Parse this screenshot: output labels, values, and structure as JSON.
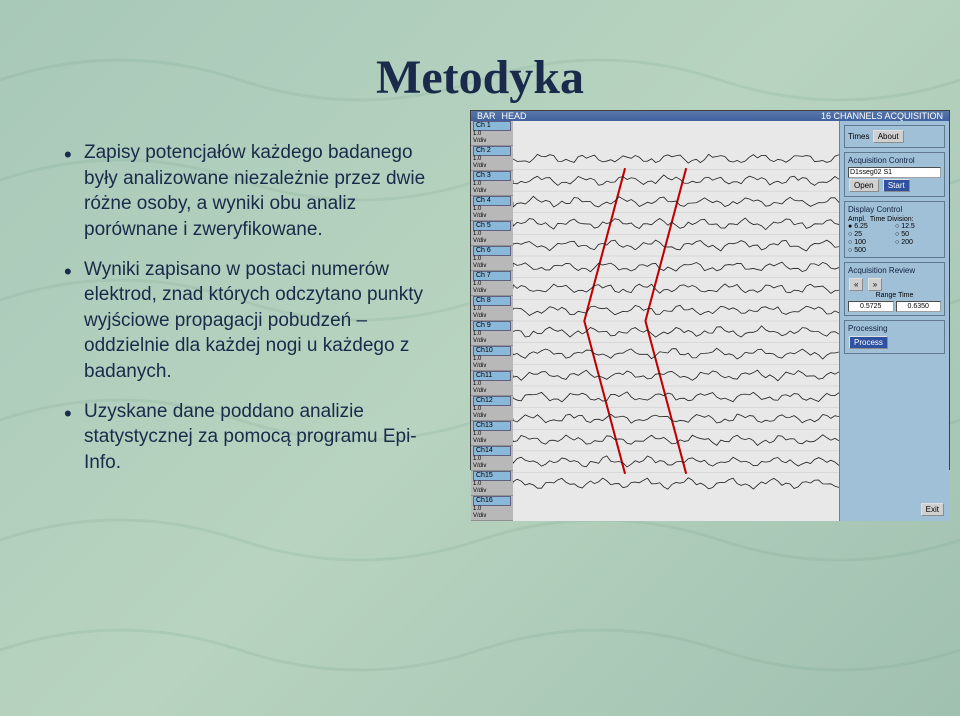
{
  "title": "Metodyka",
  "bullets": [
    "Zapisy potencjałów każdego badanego były analizowane niezależnie przez dwie różne osoby, a wyniki obu analiz porównane i zweryfikowane.",
    "Wyniki zapisano w postaci numerów elektrod, znad których odczytano punkty wyjściowe propagacji pobudzeń – oddzielnie dla każdej nogi u każdego z badanych.",
    "Uzyskane dane poddano analizie statystycznej za pomocą programu Epi-Info."
  ],
  "eeg": {
    "header": {
      "bar": "BAR",
      "head": "HEAD",
      "acq": "16 CHANNELS ACQUISITION"
    },
    "channels": [
      {
        "name": "Ch 1",
        "v": "1.0",
        "u": "V/div"
      },
      {
        "name": "Ch 2",
        "v": "1.0",
        "u": "V/div"
      },
      {
        "name": "Ch 3",
        "v": "1.0",
        "u": "V/div"
      },
      {
        "name": "Ch 4",
        "v": "1.0",
        "u": "V/div"
      },
      {
        "name": "Ch 5",
        "v": "1.0",
        "u": "V/div"
      },
      {
        "name": "Ch 6",
        "v": "1.0",
        "u": "V/div"
      },
      {
        "name": "Ch 7",
        "v": "1.0",
        "u": "V/div"
      },
      {
        "name": "Ch 8",
        "v": "1.0",
        "u": "V/div"
      },
      {
        "name": "Ch 9",
        "v": "1.0",
        "u": "V/div"
      },
      {
        "name": "Ch10",
        "v": "1.0",
        "u": "V/div"
      },
      {
        "name": "Ch11",
        "v": "1.0",
        "u": "V/div"
      },
      {
        "name": "Ch12",
        "v": "1.0",
        "u": "V/div"
      },
      {
        "name": "Ch13",
        "v": "1.0",
        "u": "V/div"
      },
      {
        "name": "Ch14",
        "v": "1.0",
        "u": "V/div"
      },
      {
        "name": "Ch15",
        "v": "1.0",
        "u": "V/div"
      },
      {
        "name": "Ch16",
        "v": "1.0",
        "u": "V/div"
      }
    ],
    "panel": {
      "times_label": "Times",
      "about_btn": "About",
      "acq_control": "Acquisition Control",
      "file_field": "D1sseg02 S1",
      "open_btn": "Open",
      "start_btn": "Start",
      "display_control": "Display Control",
      "ampl_label": "Ampl.",
      "time_div_label": "Time Division:",
      "time_opts": [
        "6.25",
        "12.5",
        "25",
        "50",
        "100",
        "200",
        "500"
      ],
      "time_selected": "6.25",
      "acq_review": "Acquisition Review",
      "scroll_left": "«",
      "scroll_right": "»",
      "range_label": "Range Time",
      "range_from": "0.5725",
      "range_to": "0.6350",
      "processing": "Processing",
      "proc_btn": "Process",
      "exit_btn": "Exit"
    },
    "wave_color": "#202020",
    "marker_color": "#c00000",
    "grid_color": "#c8c8c8"
  },
  "colors": {
    "bg_from": "#a8c8b8",
    "bg_to": "#a0c0b0",
    "title": "#1a2a4a",
    "text": "#1a2a4a"
  }
}
